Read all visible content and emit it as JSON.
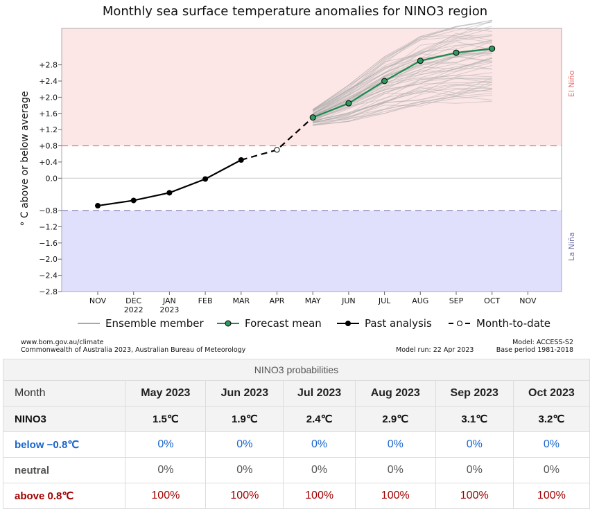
{
  "chart_data": {
    "type": "line",
    "title": "Monthly sea surface temperature anomalies for NINO3 region",
    "ylabel": "° C above or below average",
    "ylim": [
      -2.8,
      3.7
    ],
    "yticks": [
      2.8,
      2.4,
      2.0,
      1.6,
      1.2,
      0.8,
      0.4,
      0.0,
      -0.8,
      -1.2,
      -1.6,
      -2.0,
      -2.4,
      -2.8
    ],
    "ytick_labels": [
      "+2.8",
      "+2.4",
      "+2.0",
      "+1.6",
      "+1.2",
      "+0.8",
      "+0.4",
      "0.0",
      "−0.8",
      "−1.2",
      "−1.6",
      "−2.0",
      "−2.4",
      "−2.8"
    ],
    "x_labels": [
      "NOV",
      "DEC",
      "JAN",
      "FEB",
      "MAR",
      "APR",
      "MAY",
      "JUN",
      "JUL",
      "AUG",
      "SEP",
      "OCT",
      "NOV"
    ],
    "x_sublabels": [
      "",
      "2022",
      "2023",
      "",
      "",
      "",
      "",
      "",
      "",
      "",
      "",
      "",
      ""
    ],
    "thresholds": {
      "el_nino": 0.8,
      "la_nina": -0.8
    },
    "region_labels": {
      "el_nino": "El Niño",
      "la_nina": "La Niña"
    },
    "colors": {
      "el_nino_zone": "#fce6e6",
      "la_nina_zone": "#e0e0fc",
      "el_nino_line": "#e8706e",
      "la_nina_line": "#7070a8",
      "forecast": "#1e8a4e",
      "ensemble": "#a8a8a8"
    },
    "series": [
      {
        "name": "Past analysis",
        "x": [
          0,
          1,
          2,
          3,
          4
        ],
        "values": [
          -0.68,
          -0.55,
          -0.36,
          -0.02,
          0.45
        ]
      },
      {
        "name": "Month-to-date",
        "x": [
          4,
          5,
          6
        ],
        "values": [
          0.45,
          0.7,
          1.5
        ]
      },
      {
        "name": "Forecast mean",
        "x": [
          6,
          7,
          8,
          9,
          10,
          11
        ],
        "values": [
          1.5,
          1.85,
          2.4,
          2.9,
          3.1,
          3.2
        ]
      }
    ],
    "ensemble": {
      "x": [
        6,
        7,
        8,
        9,
        10,
        11
      ],
      "min": [
        1.3,
        1.4,
        1.6,
        1.75,
        1.85,
        1.9
      ],
      "max": [
        1.7,
        2.3,
        3.0,
        3.5,
        3.75,
        3.9
      ]
    },
    "legend": [
      "Ensemble member",
      "Forecast mean",
      "Past analysis",
      "Month-to-date"
    ]
  },
  "footer": {
    "url": "www.bom.gov.au/climate",
    "copyright": "Commonwealth of Australia 2023, Australian Bureau of Meteorology",
    "model_run": "Model run: 22 Apr 2023",
    "model": "Model: ACCESS-S2",
    "base_period": "Base period 1981-2018"
  },
  "table": {
    "title": "NINO3 probabilities",
    "header_first": "Month",
    "months": [
      "May 2023",
      "Jun 2023",
      "Jul 2023",
      "Aug 2023",
      "Sep 2023",
      "Oct 2023"
    ],
    "nino_label": "NINO3",
    "nino_values": [
      "1.5℃",
      "1.9℃",
      "2.4℃",
      "2.9℃",
      "3.1℃",
      "3.2℃"
    ],
    "below_label": "below −0.8℃",
    "below_values": [
      "0%",
      "0%",
      "0%",
      "0%",
      "0%",
      "0%"
    ],
    "neutral_label": "neutral",
    "neutral_values": [
      "0%",
      "0%",
      "0%",
      "0%",
      "0%",
      "0%"
    ],
    "above_label": "above 0.8℃",
    "above_values": [
      "100%",
      "100%",
      "100%",
      "100%",
      "100%",
      "100%"
    ],
    "colors": {
      "below": "#1a66cc",
      "neutral": "#555555",
      "above": "#a00000"
    }
  }
}
